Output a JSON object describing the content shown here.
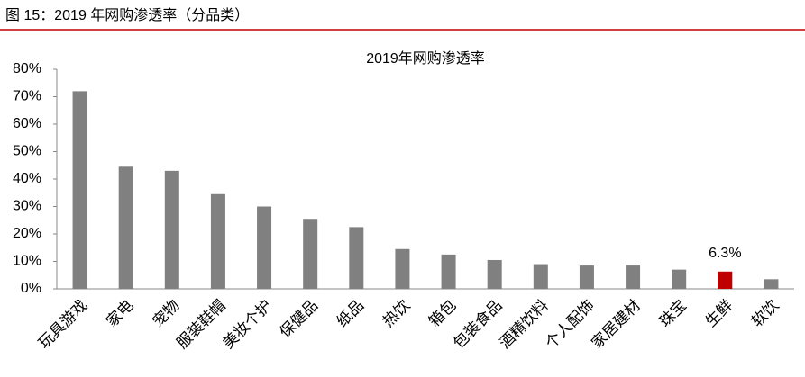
{
  "caption": "图 15：2019 年网购渗透率（分品类）",
  "chart_data": {
    "type": "bar",
    "title": "2019年网购渗透率",
    "categories": [
      "玩具游戏",
      "家电",
      "宠物",
      "服装鞋帽",
      "美妆个护",
      "保健品",
      "纸品",
      "热饮",
      "箱包",
      "包装食品",
      "酒精饮料",
      "个人配饰",
      "家居建材",
      "珠宝",
      "生鲜",
      "软饮"
    ],
    "values": [
      72,
      44.5,
      43,
      34.5,
      30,
      25.5,
      22.5,
      14.5,
      12.5,
      10.5,
      9,
      8.5,
      8.5,
      7,
      6.3,
      3.5
    ],
    "value_labels": [
      null,
      null,
      null,
      null,
      null,
      null,
      null,
      null,
      null,
      null,
      null,
      null,
      null,
      null,
      "6.3%",
      null
    ],
    "colors": [
      "#808080",
      "#808080",
      "#808080",
      "#808080",
      "#808080",
      "#808080",
      "#808080",
      "#808080",
      "#808080",
      "#808080",
      "#808080",
      "#808080",
      "#808080",
      "#808080",
      "#c00000",
      "#808080"
    ],
    "ylim": [
      0,
      80
    ],
    "yticks": [
      {
        "value": 0,
        "label": "0%"
      },
      {
        "value": 10,
        "label": "10%"
      },
      {
        "value": 20,
        "label": "20%"
      },
      {
        "value": 30,
        "label": "30%"
      },
      {
        "value": 40,
        "label": "40%"
      },
      {
        "value": 50,
        "label": "50%"
      },
      {
        "value": 60,
        "label": "60%"
      },
      {
        "value": 70,
        "label": "70%"
      },
      {
        "value": 80,
        "label": "80%"
      }
    ],
    "grid": false
  }
}
